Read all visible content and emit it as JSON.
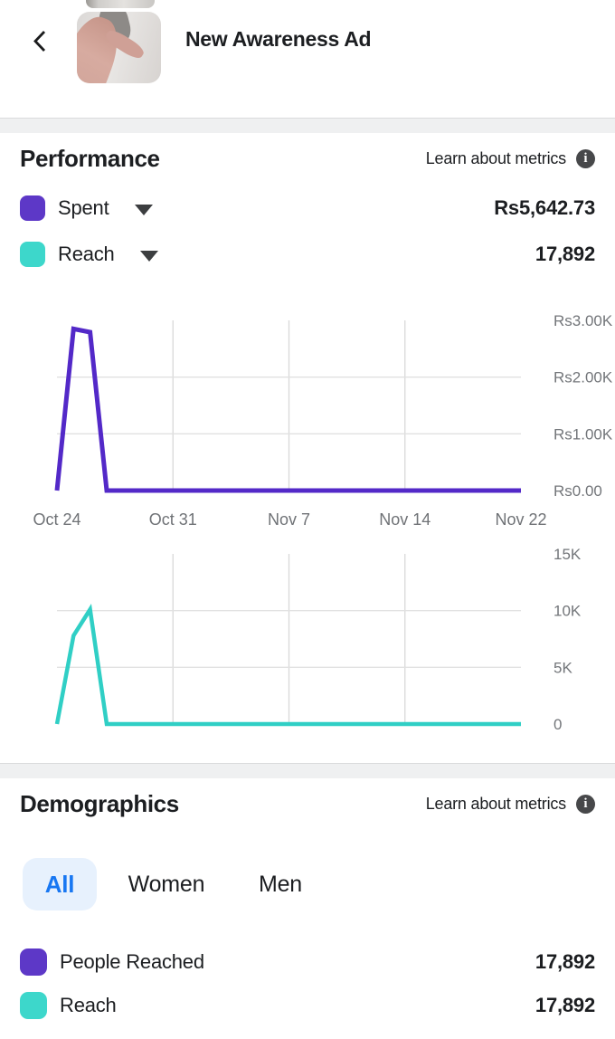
{
  "header": {
    "title": "New Awareness Ad"
  },
  "icons": {
    "back_icon": "chevron-left",
    "info_glyph": "i",
    "legend_caret": "triangle-down"
  },
  "colors": {
    "spent_purple": "#5d38c7",
    "reach_teal": "#3dd7cb",
    "spent_line": "#5329c8",
    "reach_line": "#30cfc5",
    "tab_active_text": "#1877f2",
    "tab_active_bg": "#e7f1fd",
    "axis_text": "#73767a",
    "gridline": "#dcdcdc"
  },
  "sections": {
    "performance": {
      "heading": "Performance",
      "learn_about": "Learn about metrics",
      "legend": [
        {
          "label": "Spent",
          "value": "Rs5,642.73",
          "swatch_color": "#5d38c7"
        },
        {
          "label": "Reach",
          "value": "17,892",
          "swatch_color": "#3dd7cb"
        }
      ]
    },
    "demographics": {
      "heading": "Demographics",
      "learn_about": "Learn about metrics",
      "tabs": [
        {
          "label": "All",
          "active": true
        },
        {
          "label": "Women",
          "active": false
        },
        {
          "label": "Men",
          "active": false
        }
      ],
      "rows": [
        {
          "label": "People Reached",
          "value": "17,892",
          "swatch_color": "#5d38c7"
        },
        {
          "label": "Reach",
          "value": "17,892",
          "swatch_color": "#3dd7cb"
        }
      ]
    }
  },
  "chart_data": [
    {
      "type": "line",
      "title": "Spent by day",
      "x_tick_labels": [
        "Oct 24",
        "Oct 31",
        "Nov 7",
        "Nov 14",
        "Nov 22"
      ],
      "x_tick_day_index": [
        0,
        7,
        14,
        21,
        29
      ],
      "show_x_labels": true,
      "y_tick_labels": [
        "Rs3.00K",
        "Rs2.00K",
        "Rs1.00K",
        "Rs0.00"
      ],
      "y_tick_values": [
        3000,
        2000,
        1000,
        0
      ],
      "ylim": [
        0,
        3000
      ],
      "h_gridline_values": [
        2000,
        1000
      ],
      "v_gridline_tick_indexes": [
        1,
        2,
        3
      ],
      "legend_position": "none",
      "series": [
        {
          "name": "Spent",
          "color": "#5329c8",
          "values": [
            0,
            2850,
            2792.73,
            0,
            0,
            0,
            0,
            0,
            0,
            0,
            0,
            0,
            0,
            0,
            0,
            0,
            0,
            0,
            0,
            0,
            0,
            0,
            0,
            0,
            0,
            0,
            0,
            0,
            0,
            0
          ]
        }
      ]
    },
    {
      "type": "line",
      "title": "Reach by day",
      "x_tick_labels": [
        "Oct 24",
        "Oct 31",
        "Nov 7",
        "Nov 14",
        "Nov 22"
      ],
      "x_tick_day_index": [
        0,
        7,
        14,
        21,
        29
      ],
      "show_x_labels": false,
      "y_tick_labels": [
        "15K",
        "10K",
        "5K",
        "0"
      ],
      "y_tick_values": [
        15000,
        10000,
        5000,
        0
      ],
      "ylim": [
        0,
        15000
      ],
      "h_gridline_values": [
        10000,
        5000
      ],
      "v_gridline_tick_indexes": [
        1,
        2,
        3
      ],
      "legend_position": "none",
      "series": [
        {
          "name": "Reach",
          "color": "#30cfc5",
          "values": [
            0,
            7792,
            10100,
            0,
            0,
            0,
            0,
            0,
            0,
            0,
            0,
            0,
            0,
            0,
            0,
            0,
            0,
            0,
            0,
            0,
            0,
            0,
            0,
            0,
            0,
            0,
            0,
            0,
            0,
            0
          ]
        }
      ]
    }
  ]
}
